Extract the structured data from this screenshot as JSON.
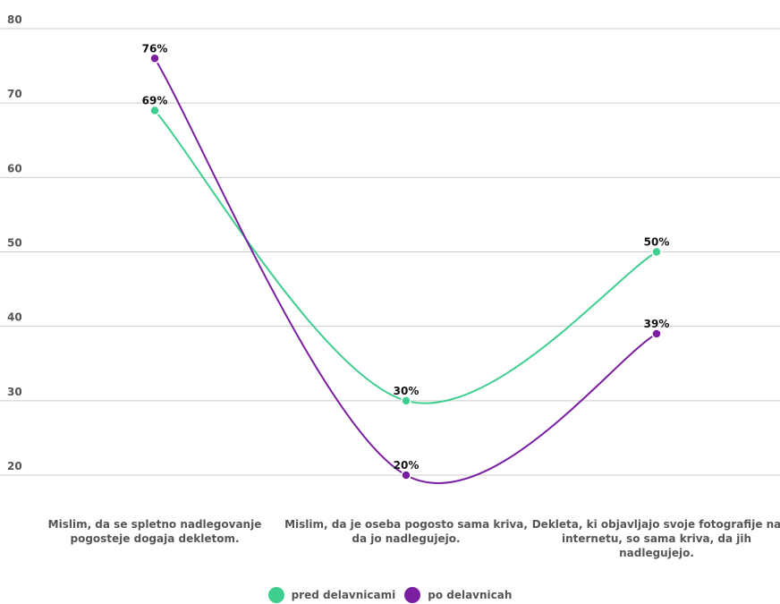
{
  "chart_data": {
    "type": "line",
    "categories": [
      "Mislim, da se spletno nadlegovanje pogosteje dogaja dekletom.",
      "Mislim, da je oseba pogosto sama kriva, da jo nadlegujejo.",
      "Dekleta, ki objavljajo svoje fotografije na internetu, so sama kriva, da jih nadlegujejo."
    ],
    "series": [
      {
        "name": "pred delavnicami",
        "values": [
          69,
          30,
          50
        ],
        "labels": [
          "69%",
          "30%",
          "50%"
        ],
        "color": "#3ecf8e"
      },
      {
        "name": "po delavnicah",
        "values": [
          76,
          20,
          39
        ],
        "labels": [
          "76%",
          "20%",
          "39%"
        ],
        "color": "#7b1fa2"
      }
    ],
    "yticks": [
      "20",
      "30",
      "40",
      "50",
      "60",
      "70",
      "80"
    ],
    "ylim": [
      20,
      80
    ],
    "grid": true,
    "legend_position": "bottom",
    "curve": "smooth"
  }
}
